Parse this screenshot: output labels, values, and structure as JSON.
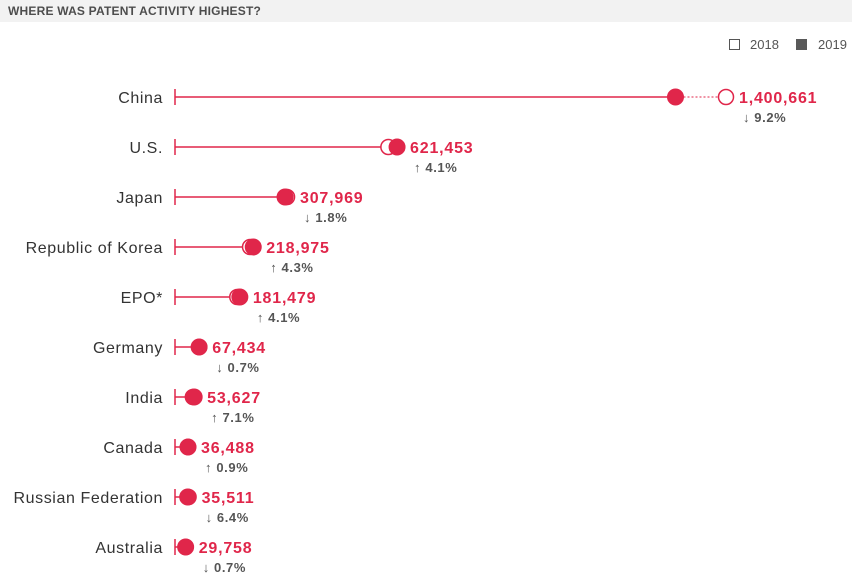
{
  "title": "WHERE WAS PATENT ACTIVITY HIGHEST?",
  "legend": {
    "label_2018": "2018",
    "label_2019": "2019"
  },
  "colors": {
    "accent": "#e0264a",
    "text": "#333333",
    "muted": "#555555",
    "title_bar": "#f2f2f2"
  },
  "chart_data": {
    "type": "dot-range",
    "title": "WHERE WAS PATENT ACTIVITY HIGHEST?",
    "legend": [
      "2018",
      "2019"
    ],
    "legend_placement": "top-right",
    "grid": false,
    "series": [
      {
        "name": "2018",
        "values": [
          1542002,
          597141,
          313567,
          209992,
          174317,
          67898,
          50055,
          36161,
          37957,
          29957
        ]
      },
      {
        "name": "2019",
        "values": [
          1400661,
          621453,
          307969,
          218975,
          181479,
          67434,
          53627,
          36488,
          35511,
          29758
        ]
      }
    ],
    "rows": [
      {
        "country": "China",
        "value_label": "1,400,661",
        "change": "9.2%",
        "direction": "down"
      },
      {
        "country": "U.S.",
        "value_label": "621,453",
        "change": "4.1%",
        "direction": "up"
      },
      {
        "country": "Japan",
        "value_label": "307,969",
        "change": "1.8%",
        "direction": "down"
      },
      {
        "country": "Republic of Korea",
        "value_label": "218,975",
        "change": "4.3%",
        "direction": "up"
      },
      {
        "country": "EPO*",
        "value_label": "181,479",
        "change": "4.1%",
        "direction": "up"
      },
      {
        "country": "Germany",
        "value_label": "67,434",
        "change": "0.7%",
        "direction": "down"
      },
      {
        "country": "India",
        "value_label": "53,627",
        "change": "7.1%",
        "direction": "up"
      },
      {
        "country": "Canada",
        "value_label": "36,488",
        "change": "0.9%",
        "direction": "up"
      },
      {
        "country": "Russian Federation",
        "value_label": "35,511",
        "change": "6.4%",
        "direction": "down"
      },
      {
        "country": "Australia",
        "value_label": "29,758",
        "change": "0.7%",
        "direction": "down"
      }
    ]
  }
}
